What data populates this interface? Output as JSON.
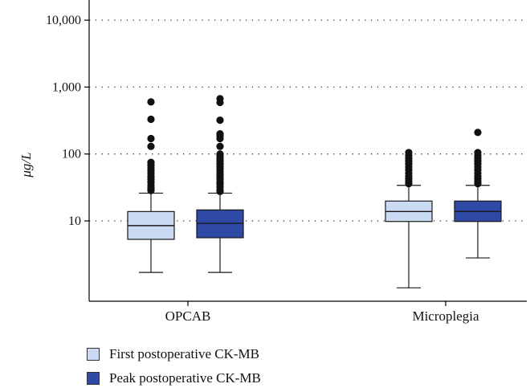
{
  "chart_data": {
    "type": "box",
    "ylabel": "μg/L",
    "yscale": "log",
    "ylim": [
      0.9,
      10000
    ],
    "yticks": [
      10,
      100,
      1000,
      10000
    ],
    "ytick_labels": [
      "10",
      "100",
      "1,000",
      "10,000"
    ],
    "grid": "horizontal dotted",
    "categories": [
      "OPCAB",
      "Microplegia"
    ],
    "series": [
      {
        "name": "First postoperative CK-MB",
        "color": "#c9daf2",
        "boxes": [
          {
            "whisker_low": 1.7,
            "q1": 5.3,
            "median": 8.5,
            "q3": 13.8,
            "whisker_high": 26,
            "outliers": [
              600,
              330,
              170,
              130,
              75,
              68,
              62,
              56,
              51,
              46,
              42,
              38,
              34,
              31,
              28.5
            ]
          },
          {
            "whisker_low": 1.0,
            "q1": 9.8,
            "median": 13.8,
            "q3": 19.8,
            "whisker_high": 34,
            "outliers": [
              105,
              95,
              86,
              78,
              71,
              64,
              58,
              52,
              47,
              43,
              39,
              36
            ]
          }
        ]
      },
      {
        "name": "Peak postoperative CK-MB",
        "color": "#2e49a6",
        "boxes": [
          {
            "whisker_low": 1.7,
            "q1": 5.6,
            "median": 9.2,
            "q3": 14.6,
            "whisker_high": 26,
            "outliers": [
              670,
              590,
              320,
              200,
              185,
              170,
              130,
              100,
              92,
              85,
              78,
              71,
              65,
              60,
              55,
              50,
              46,
              42,
              38,
              35,
              32,
              29,
              27.5
            ]
          },
          {
            "whisker_low": 2.8,
            "q1": 9.8,
            "median": 13.8,
            "q3": 19.8,
            "whisker_high": 34,
            "outliers": [
              210,
              105,
              95,
              86,
              78,
              71,
              64,
              58,
              52,
              47,
              43,
              39,
              36
            ]
          }
        ]
      }
    ]
  }
}
